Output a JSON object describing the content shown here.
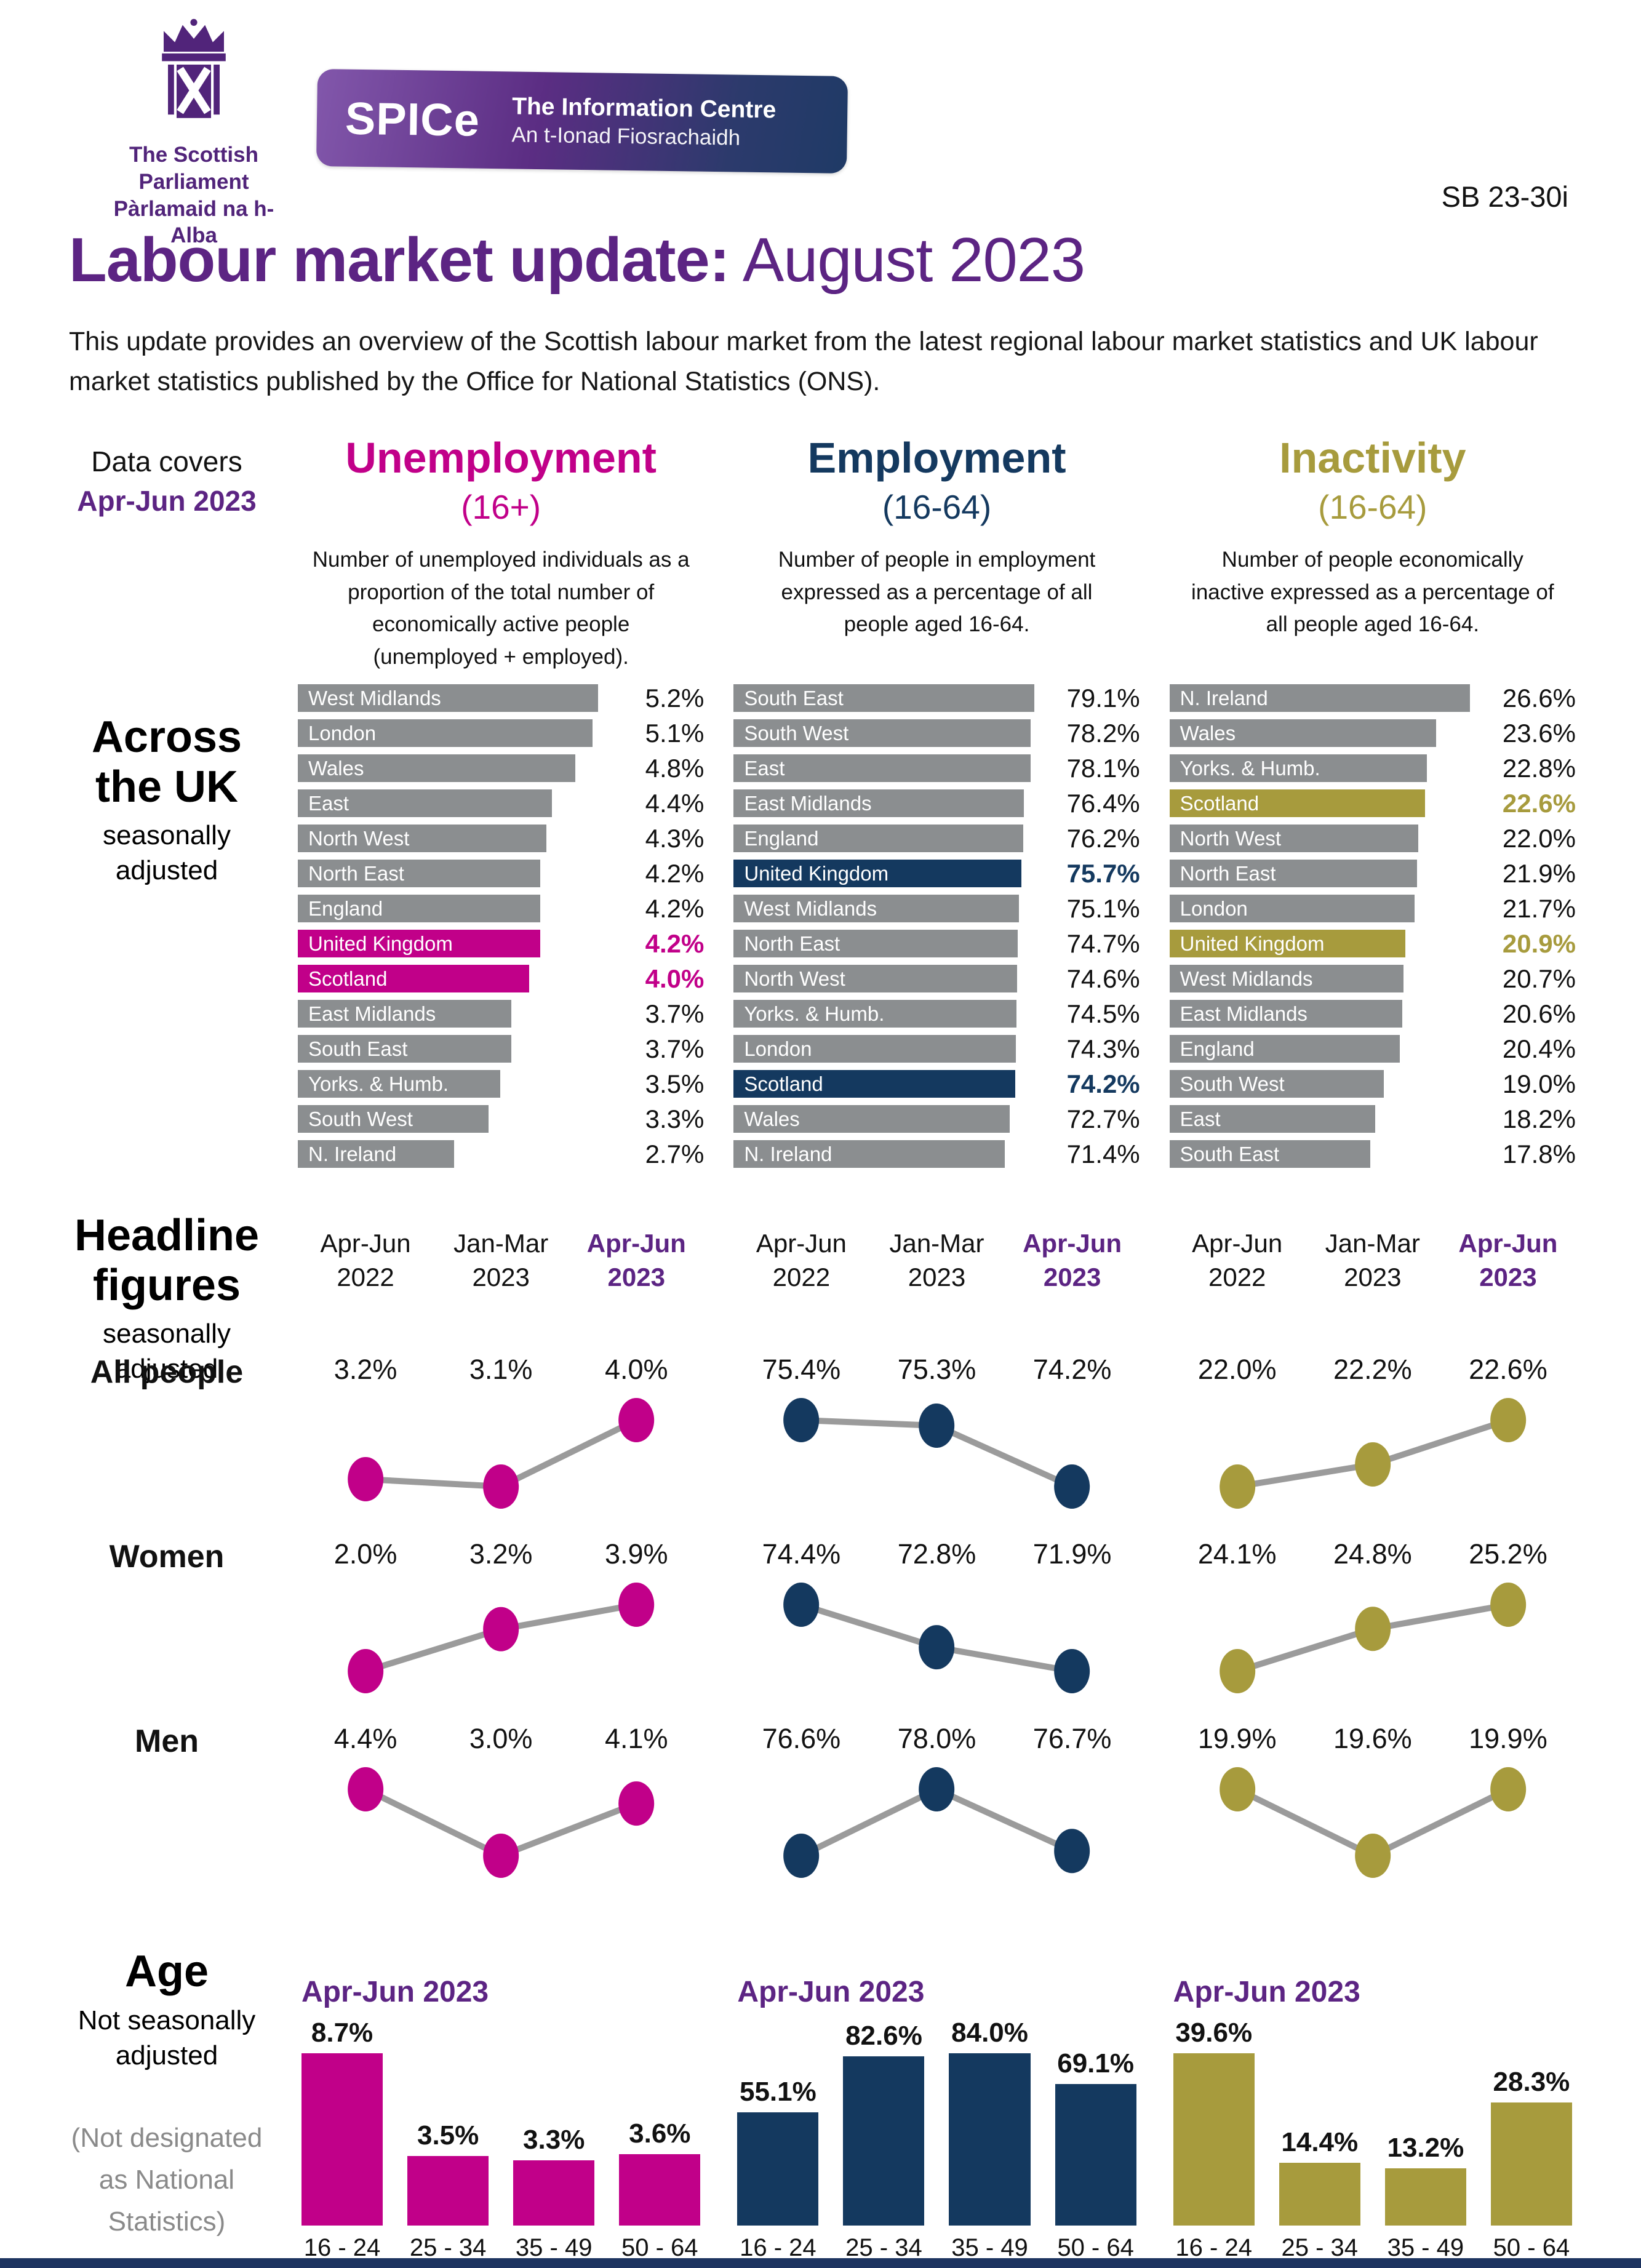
{
  "header": {
    "logo_line1": "The Scottish Parliament",
    "logo_line2": "Pàrlamaid na h-Alba",
    "spice_acronym": "SPICe",
    "spice_name": "The Information Centre",
    "spice_name_gaelic": "An t-Ionad Fiosrachaidh",
    "ref": "SB 23-30i"
  },
  "title": {
    "bold": "Labour market update:",
    "light": " August 2023"
  },
  "intro": "This update provides an overview of the Scottish labour market from the latest regional labour market statistics and UK labour market statistics published by the Office for National Statistics (ONS).",
  "data_covers": {
    "label": "Data covers",
    "period": "Apr-Jun 2023"
  },
  "metrics": [
    {
      "title": "Unemployment",
      "age_range": "(16+)",
      "description": "Number of unemployed individuals as a proportion of the total number of economically active people (unemployed + employed).",
      "color": "#C10089"
    },
    {
      "title": "Employment",
      "age_range": "(16-64)",
      "description": "Number of people in employment expressed as a percentage of all people aged 16-64.",
      "color": "#14395F"
    },
    {
      "title": "Inactivity",
      "age_range": "(16-64)",
      "description": "Number of people economically inactive expressed as a percentage of all people aged 16-64.",
      "color": "#A79B3D"
    }
  ],
  "sections": {
    "across_uk": {
      "heading_line1": "Across",
      "heading_line2": "the UK",
      "subheading": "seasonally adjusted"
    },
    "headline": {
      "heading_line1": "Headline",
      "heading_line2": "figures",
      "subheading": "seasonally adjusted",
      "row_labels": [
        "All people",
        "Women",
        "Men"
      ]
    },
    "age": {
      "heading": "Age",
      "subheading": "Not seasonally adjusted",
      "note": "(Not designated as National Statistics)"
    }
  },
  "chart_data": [
    {
      "id": "uk-unemployment",
      "type": "bar",
      "orientation": "horizontal",
      "title": "Unemployment (16+) across the UK, seasonally adjusted",
      "unit": "%",
      "color": "#C10089",
      "bar_color": "#8B8E90",
      "categories": [
        "West Midlands",
        "London",
        "Wales",
        "East",
        "North West",
        "North East",
        "England",
        "United Kingdom",
        "Scotland",
        "East Midlands",
        "South East",
        "Yorks. & Humb.",
        "South West",
        "N. Ireland"
      ],
      "values": [
        5.2,
        5.1,
        4.8,
        4.4,
        4.3,
        4.2,
        4.2,
        4.2,
        4.0,
        3.7,
        3.7,
        3.5,
        3.3,
        2.7
      ],
      "highlight": [
        "United Kingdom",
        "Scotland"
      ]
    },
    {
      "id": "uk-employment",
      "type": "bar",
      "orientation": "horizontal",
      "title": "Employment (16-64) across the UK, seasonally adjusted",
      "unit": "%",
      "color": "#14395F",
      "bar_color": "#8B8E90",
      "categories": [
        "South East",
        "South West",
        "East",
        "East Midlands",
        "England",
        "United Kingdom",
        "West Midlands",
        "North East",
        "North West",
        "Yorks. & Humb.",
        "London",
        "Scotland",
        "Wales",
        "N. Ireland"
      ],
      "values": [
        79.1,
        78.2,
        78.1,
        76.4,
        76.2,
        75.7,
        75.1,
        74.7,
        74.6,
        74.5,
        74.3,
        74.2,
        72.7,
        71.4
      ],
      "highlight": [
        "United Kingdom",
        "Scotland"
      ]
    },
    {
      "id": "uk-inactivity",
      "type": "bar",
      "orientation": "horizontal",
      "title": "Inactivity (16-64) across the UK, seasonally adjusted",
      "unit": "%",
      "color": "#A79B3D",
      "bar_color": "#8B8E90",
      "categories": [
        "N. Ireland",
        "Wales",
        "Yorks. & Humb.",
        "Scotland",
        "North West",
        "North East",
        "London",
        "United Kingdom",
        "West Midlands",
        "East Midlands",
        "England",
        "South West",
        "East",
        "South East"
      ],
      "values": [
        26.6,
        23.6,
        22.8,
        22.6,
        22.0,
        21.9,
        21.7,
        20.9,
        20.7,
        20.6,
        20.4,
        19.0,
        18.2,
        17.8
      ],
      "highlight": [
        "Scotland",
        "United Kingdom"
      ]
    },
    {
      "id": "headline-unemployment",
      "type": "line",
      "unit": "%",
      "color": "#C10089",
      "x": [
        "Apr-Jun 2022",
        "Jan-Mar 2023",
        "Apr-Jun 2023"
      ],
      "series": [
        {
          "name": "All people",
          "values": [
            3.2,
            3.1,
            4.0
          ]
        },
        {
          "name": "Women",
          "values": [
            2.0,
            3.2,
            3.9
          ]
        },
        {
          "name": "Men",
          "values": [
            4.4,
            3.0,
            4.1
          ]
        }
      ]
    },
    {
      "id": "headline-employment",
      "type": "line",
      "unit": "%",
      "color": "#14395F",
      "x": [
        "Apr-Jun 2022",
        "Jan-Mar 2023",
        "Apr-Jun 2023"
      ],
      "series": [
        {
          "name": "All people",
          "values": [
            75.4,
            75.3,
            74.2
          ]
        },
        {
          "name": "Women",
          "values": [
            74.4,
            72.8,
            71.9
          ]
        },
        {
          "name": "Men",
          "values": [
            76.6,
            78.0,
            76.7
          ]
        }
      ]
    },
    {
      "id": "headline-inactivity",
      "type": "line",
      "unit": "%",
      "color": "#A79B3D",
      "x": [
        "Apr-Jun 2022",
        "Jan-Mar 2023",
        "Apr-Jun 2023"
      ],
      "series": [
        {
          "name": "All people",
          "values": [
            22.0,
            22.2,
            22.6
          ]
        },
        {
          "name": "Women",
          "values": [
            24.1,
            24.8,
            25.2
          ]
        },
        {
          "name": "Men",
          "values": [
            19.9,
            19.6,
            19.9
          ]
        }
      ]
    },
    {
      "id": "age-unemployment",
      "type": "bar",
      "title": "Apr-Jun 2023",
      "unit": "%",
      "color": "#C10089",
      "categories": [
        "16 - 24",
        "25 - 34",
        "35 - 49",
        "50 - 64"
      ],
      "values": [
        8.7,
        3.5,
        3.3,
        3.6
      ]
    },
    {
      "id": "age-employment",
      "type": "bar",
      "title": "Apr-Jun 2023",
      "unit": "%",
      "color": "#14395F",
      "categories": [
        "16 - 24",
        "25 - 34",
        "35 - 49",
        "50 - 64"
      ],
      "values": [
        55.1,
        82.6,
        84.0,
        69.1
      ]
    },
    {
      "id": "age-inactivity",
      "type": "bar",
      "title": "Apr-Jun 2023",
      "unit": "%",
      "color": "#A79B3D",
      "categories": [
        "16 - 24",
        "25 - 34",
        "35 - 49",
        "50 - 64"
      ],
      "values": [
        39.6,
        14.4,
        13.2,
        28.3
      ]
    }
  ],
  "colors": {
    "purple": "#5C2483",
    "bar_gray": "#8B8E90",
    "line_gray": "#9B9B9B",
    "footer": "#1D3460"
  }
}
